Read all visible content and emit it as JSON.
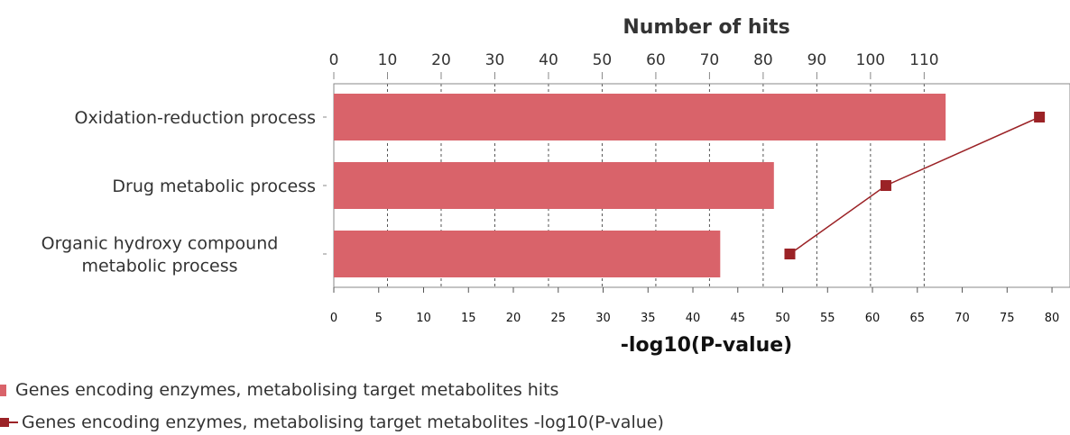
{
  "chart_data": {
    "type": "bar",
    "orientation": "horizontal",
    "categories": [
      [
        "Oxidation-reduction process"
      ],
      [
        "Drug metabolic process"
      ],
      [
        "Organic hydroxy compound",
        "metabolic process"
      ]
    ],
    "series": [
      {
        "name": "Genes encoding enzymes, metabolising target metabolites hits",
        "type": "bar",
        "axis": "top",
        "values": [
          114,
          82,
          72
        ],
        "color": "#d9636a"
      },
      {
        "name": "Genes encoding enzymes, metabolising target metabolites -log10(P-value)",
        "type": "line",
        "axis": "bottom",
        "values": [
          78.6,
          61.5,
          50.8
        ],
        "color": "#9b2226"
      }
    ],
    "top_axis": {
      "title": "Number of hits",
      "range": [
        0,
        117
      ],
      "ticks": [
        0,
        10,
        20,
        30,
        40,
        50,
        60,
        70,
        80,
        90,
        100,
        110
      ]
    },
    "bottom_axis": {
      "title": "-log10(P-value)",
      "range": [
        0,
        81
      ],
      "ticks": [
        0,
        5,
        10,
        15,
        20,
        25,
        30,
        35,
        40,
        45,
        50,
        55,
        60,
        65,
        70,
        75,
        80
      ]
    },
    "grid": true,
    "gridline_axis": "top",
    "legend_position": "bottom-left"
  }
}
